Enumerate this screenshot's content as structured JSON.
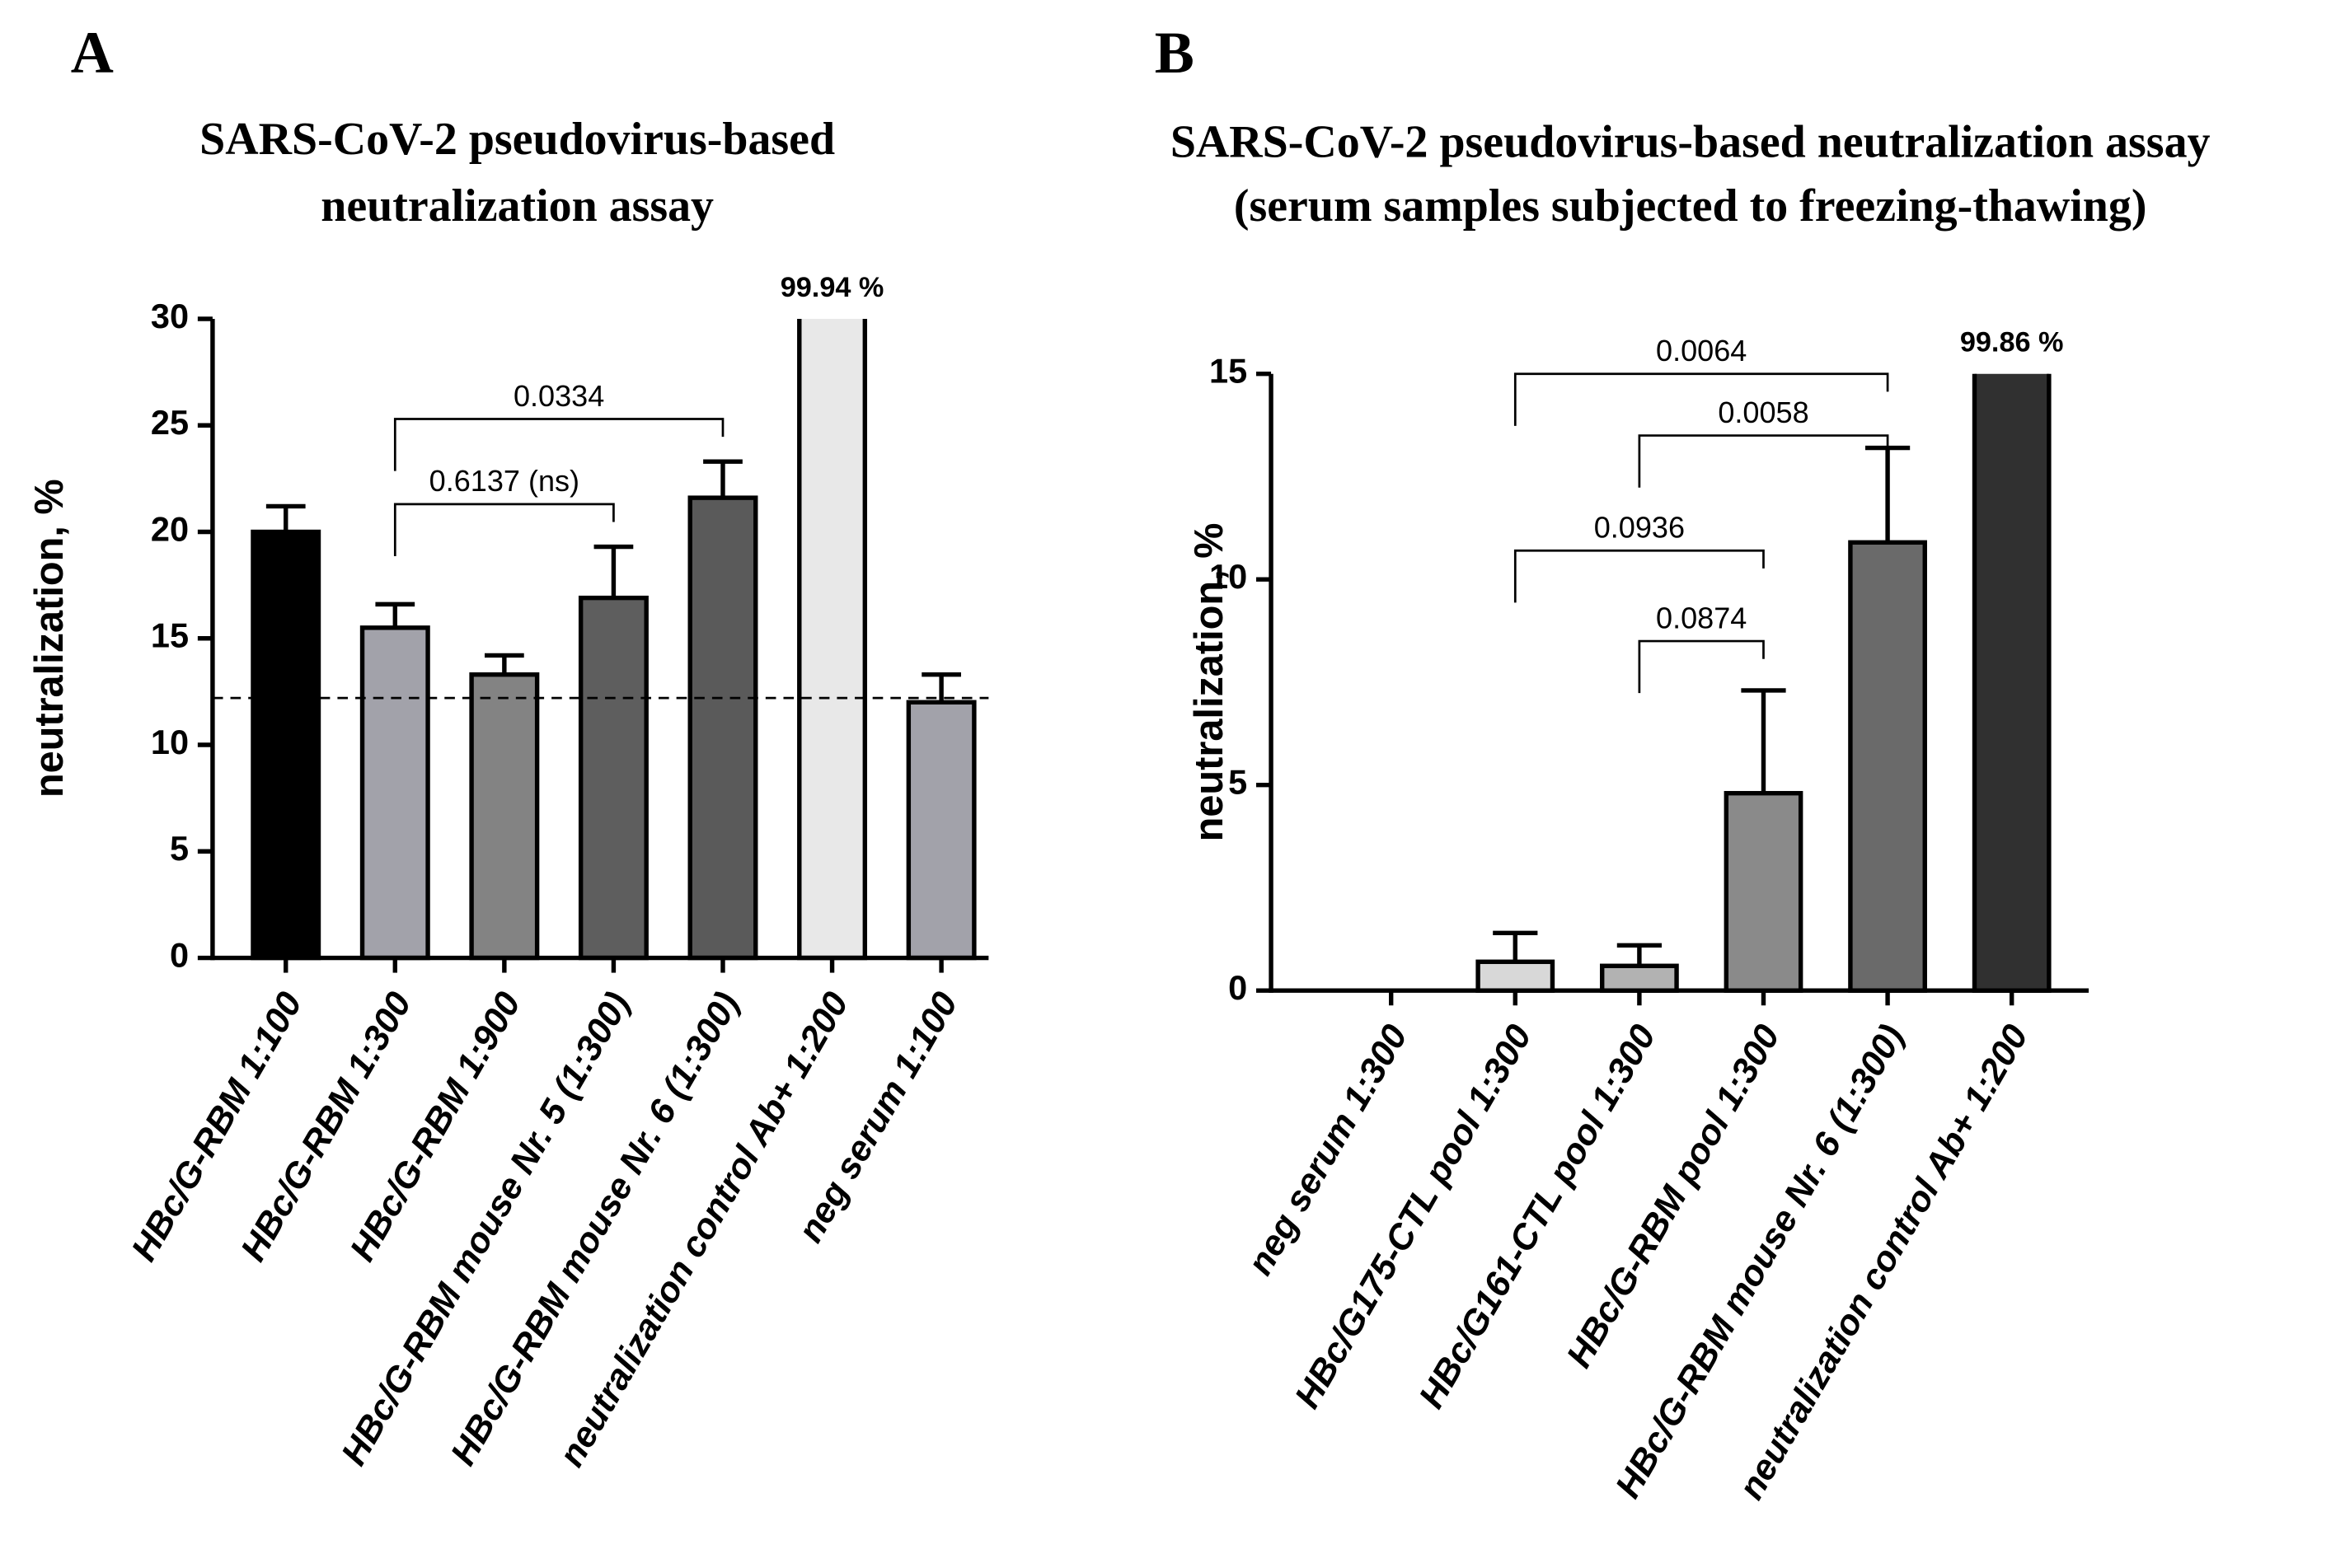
{
  "chart_data": [
    {
      "type": "bar",
      "panel": "A",
      "title": [
        "SARS-CoV-2 pseudovirus-based",
        "neutralization assay"
      ],
      "ylabel": "neutralization, %",
      "categories": [
        "HBc/G-RBM 1:100",
        "HBc/G-RBM 1:300",
        "HBc/G-RBM 1:900",
        "HBc/G-RBM mouse Nr. 5 (1:300)",
        "HBc/G-RBM mouse Nr. 6 (1:300)",
        "neutralization control Ab+ 1:200",
        "neg serum  1:100"
      ],
      "values": [
        20.0,
        15.5,
        13.3,
        16.9,
        21.6,
        99.94,
        12.0
      ],
      "errors": [
        1.2,
        1.1,
        0.9,
        2.4,
        1.7,
        0,
        1.3
      ],
      "value_labels": [
        null,
        null,
        null,
        null,
        null,
        "99.94 %",
        null
      ],
      "colors": [
        "#000000",
        "#a2a2aa",
        "#838383",
        "#5e5e5e",
        "#5a5a5a",
        "#e8e8e8",
        "#a2a2aa"
      ],
      "ylim": [
        0,
        30
      ],
      "yticks": [
        0,
        5,
        10,
        15,
        20,
        25,
        30
      ],
      "reference_line": 12.2,
      "annotations": [
        {
          "label": "0.0334",
          "from": 1,
          "to": 4,
          "y": 25.3
        },
        {
          "label": "0.6137 (ns)",
          "from": 1,
          "to": 3,
          "y": 21.3
        }
      ]
    },
    {
      "type": "bar",
      "panel": "B",
      "title": [
        "SARS-CoV-2 pseudovirus-based neutralization assay",
        "(serum samples subjected to freezing-thawing)"
      ],
      "ylabel": "neutralization, %",
      "categories": [
        "neg serum 1:300",
        "HBc/G175-CTL pool 1:300",
        "HBc/G161-CTL pool 1:300",
        "HBc/G-RBM pool 1:300",
        "HBc/G-RBM mouse Nr. 6 (1:300)",
        "neutralization control Ab+ 1:200"
      ],
      "values": [
        0,
        0.7,
        0.6,
        4.8,
        10.9,
        99.86
      ],
      "errors": [
        0,
        0.7,
        0.5,
        2.5,
        2.3,
        0
      ],
      "value_labels": [
        null,
        null,
        null,
        null,
        null,
        "99.86 %"
      ],
      "colors": [
        "#ffffff",
        "#d8d8d8",
        "#b2b2b2",
        "#8a8a8a",
        "#6a6a6a",
        "#303030"
      ],
      "ylim": [
        0,
        15
      ],
      "yticks": [
        0,
        5,
        10,
        15
      ],
      "annotations": [
        {
          "label": "0.0064",
          "from": 1,
          "to": 4,
          "y": 15
        },
        {
          "label": "0.0058",
          "from": 2,
          "to": 4,
          "y": 13.5
        },
        {
          "label": "0.0936",
          "from": 1,
          "to": 3,
          "y": 10.7
        },
        {
          "label": "0.0874",
          "from": 2,
          "to": 3,
          "y": 8.5
        }
      ]
    }
  ]
}
